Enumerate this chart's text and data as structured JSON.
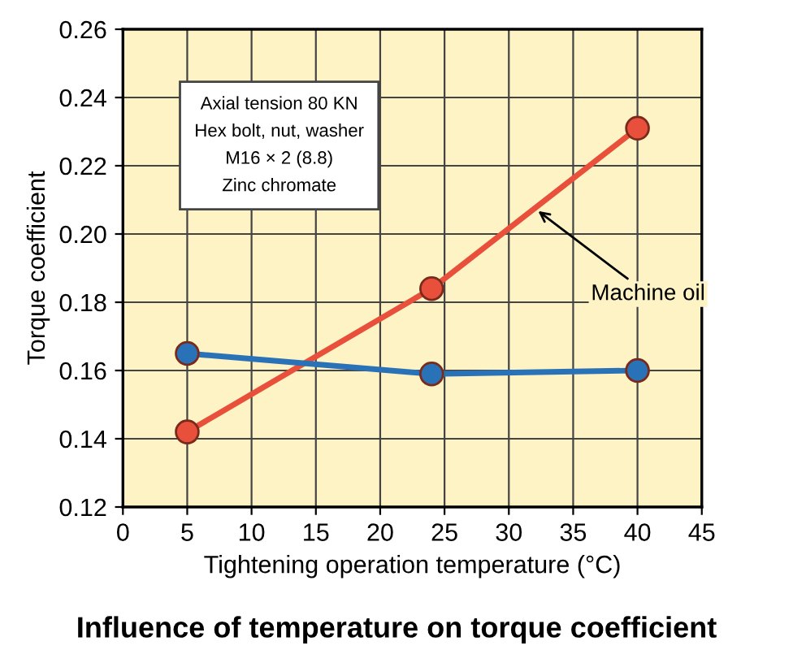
{
  "chart_data": {
    "type": "line",
    "title": "Influence of temperature on torque coefficient",
    "xlabel": "Tightening operation temperature (°C)",
    "ylabel": "Torque coefficient",
    "series": [
      {
        "name": "Machine oil",
        "color": "#e8503c",
        "x": [
          5,
          24,
          40
        ],
        "values": [
          0.142,
          0.184,
          0.231
        ]
      },
      {
        "color": "#2a72b8",
        "x": [
          5,
          24,
          40
        ],
        "values": [
          0.165,
          0.159,
          0.16
        ]
      }
    ],
    "xlim": [
      0,
      45
    ],
    "xticks": [
      0,
      5,
      10,
      15,
      20,
      25,
      30,
      35,
      40,
      45
    ],
    "ylim": [
      0.12,
      0.26
    ],
    "yticks": [
      {
        "value": 0.12,
        "label": "0.12"
      },
      {
        "value": 0.14,
        "label": "0.14"
      },
      {
        "value": 0.16,
        "label": "0.16"
      },
      {
        "value": 0.18,
        "label": "0.18"
      },
      {
        "value": 0.2,
        "label": "0.20"
      },
      {
        "value": 0.22,
        "label": "0.22"
      },
      {
        "value": 0.24,
        "label": "0.24"
      },
      {
        "value": 0.26,
        "label": "0.26"
      }
    ],
    "grid": true,
    "marker": "circle",
    "line_style": "solid",
    "annotations": [
      "Axial tension 80 KN\nHex bolt, nut, washer\nM16 × 2 (8.8)\nZinc chromate"
    ]
  }
}
